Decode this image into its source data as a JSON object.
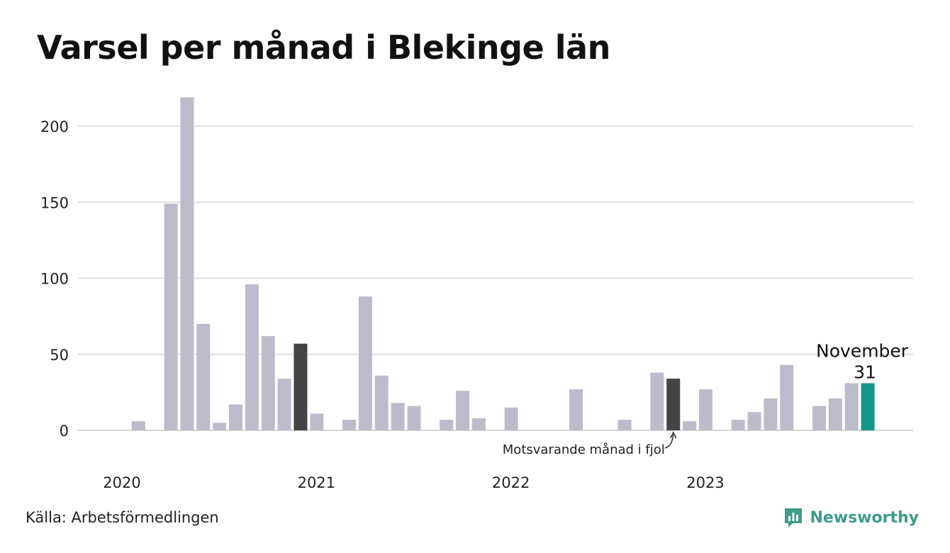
{
  "title": "Varsel per månad i Blekinge län",
  "source": "Källa: Arbetsförmedlingen",
  "brand": {
    "name": "Newsworthy",
    "icon": "newsworthy-logo-icon"
  },
  "colors": {
    "bar": "#bdbbcb",
    "compare": "#444444",
    "highlight": "#14958a",
    "grid": "#e0e0e0",
    "brand": "#3f9b8a"
  },
  "chart_data": {
    "type": "bar",
    "title": "Varsel per månad i Blekinge län",
    "xlabel": "",
    "ylabel": "",
    "ylim": [
      0,
      220
    ],
    "yticks": [
      0,
      50,
      100,
      150,
      200
    ],
    "year_labels": [
      {
        "label": "2020",
        "index": 0
      },
      {
        "label": "2021",
        "index": 12
      },
      {
        "label": "2022",
        "index": 24
      },
      {
        "label": "2023",
        "index": 36
      }
    ],
    "values": [
      0,
      6,
      0,
      149,
      219,
      70,
      5,
      17,
      96,
      62,
      34,
      57,
      11,
      0,
      7,
      88,
      36,
      18,
      16,
      0,
      7,
      26,
      8,
      0,
      15,
      0,
      0,
      0,
      27,
      0,
      0,
      7,
      0,
      38,
      34,
      6,
      27,
      0,
      7,
      12,
      21,
      43,
      0,
      16,
      21,
      31
    ],
    "compare_index": 34,
    "compare_index_2": 11,
    "highlight_index": 46,
    "highlight_value_fix": 31,
    "highlight_label": "November",
    "highlight_value_label": "31",
    "annotation": "Motsvarande månad i fjol",
    "grid": true
  }
}
